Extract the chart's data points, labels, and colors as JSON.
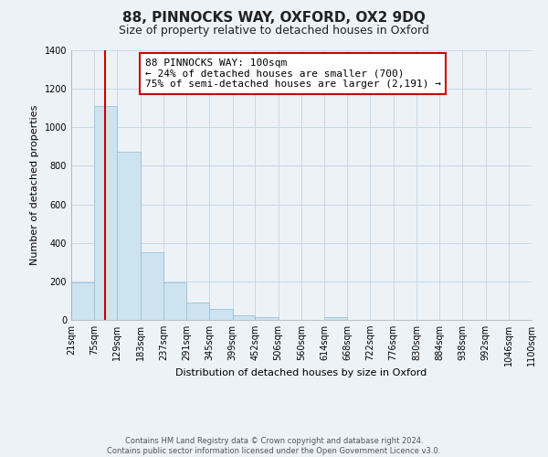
{
  "title": "88, PINNOCKS WAY, OXFORD, OX2 9DQ",
  "subtitle": "Size of property relative to detached houses in Oxford",
  "xlabel": "Distribution of detached houses by size in Oxford",
  "ylabel": "Number of detached properties",
  "bin_edges": [
    21,
    75,
    129,
    183,
    237,
    291,
    345,
    399,
    452,
    506,
    560,
    614,
    668,
    722,
    776,
    830,
    884,
    938,
    992,
    1046,
    1100
  ],
  "bin_labels": [
    "21sqm",
    "75sqm",
    "129sqm",
    "183sqm",
    "237sqm",
    "291sqm",
    "345sqm",
    "399sqm",
    "452sqm",
    "506sqm",
    "560sqm",
    "614sqm",
    "668sqm",
    "722sqm",
    "776sqm",
    "830sqm",
    "884sqm",
    "938sqm",
    "992sqm",
    "1046sqm",
    "1100sqm"
  ],
  "counts": [
    195,
    1110,
    875,
    350,
    195,
    90,
    55,
    22,
    15,
    0,
    0,
    12,
    0,
    0,
    0,
    0,
    0,
    0,
    0,
    0
  ],
  "bar_color": "#cde4f0",
  "bar_edge_color": "#9bbfd8",
  "ylim": [
    0,
    1400
  ],
  "yticks": [
    0,
    200,
    400,
    600,
    800,
    1000,
    1200,
    1400
  ],
  "property_line_x": 100,
  "property_line_color": "#cc0000",
  "annotation_text": "88 PINNOCKS WAY: 100sqm\n← 24% of detached houses are smaller (700)\n75% of semi-detached houses are larger (2,191) →",
  "annotation_box_color": "#ffffff",
  "annotation_box_edge": "#cc0000",
  "footer_line1": "Contains HM Land Registry data © Crown copyright and database right 2024.",
  "footer_line2": "Contains public sector information licensed under the Open Government Licence v3.0.",
  "title_fontsize": 11,
  "subtitle_fontsize": 9,
  "annotation_fontsize": 8,
  "axis_label_fontsize": 8,
  "tick_fontsize": 7,
  "footer_fontsize": 6,
  "grid_color": "#c8d8e8",
  "background_color": "#edf2f7"
}
